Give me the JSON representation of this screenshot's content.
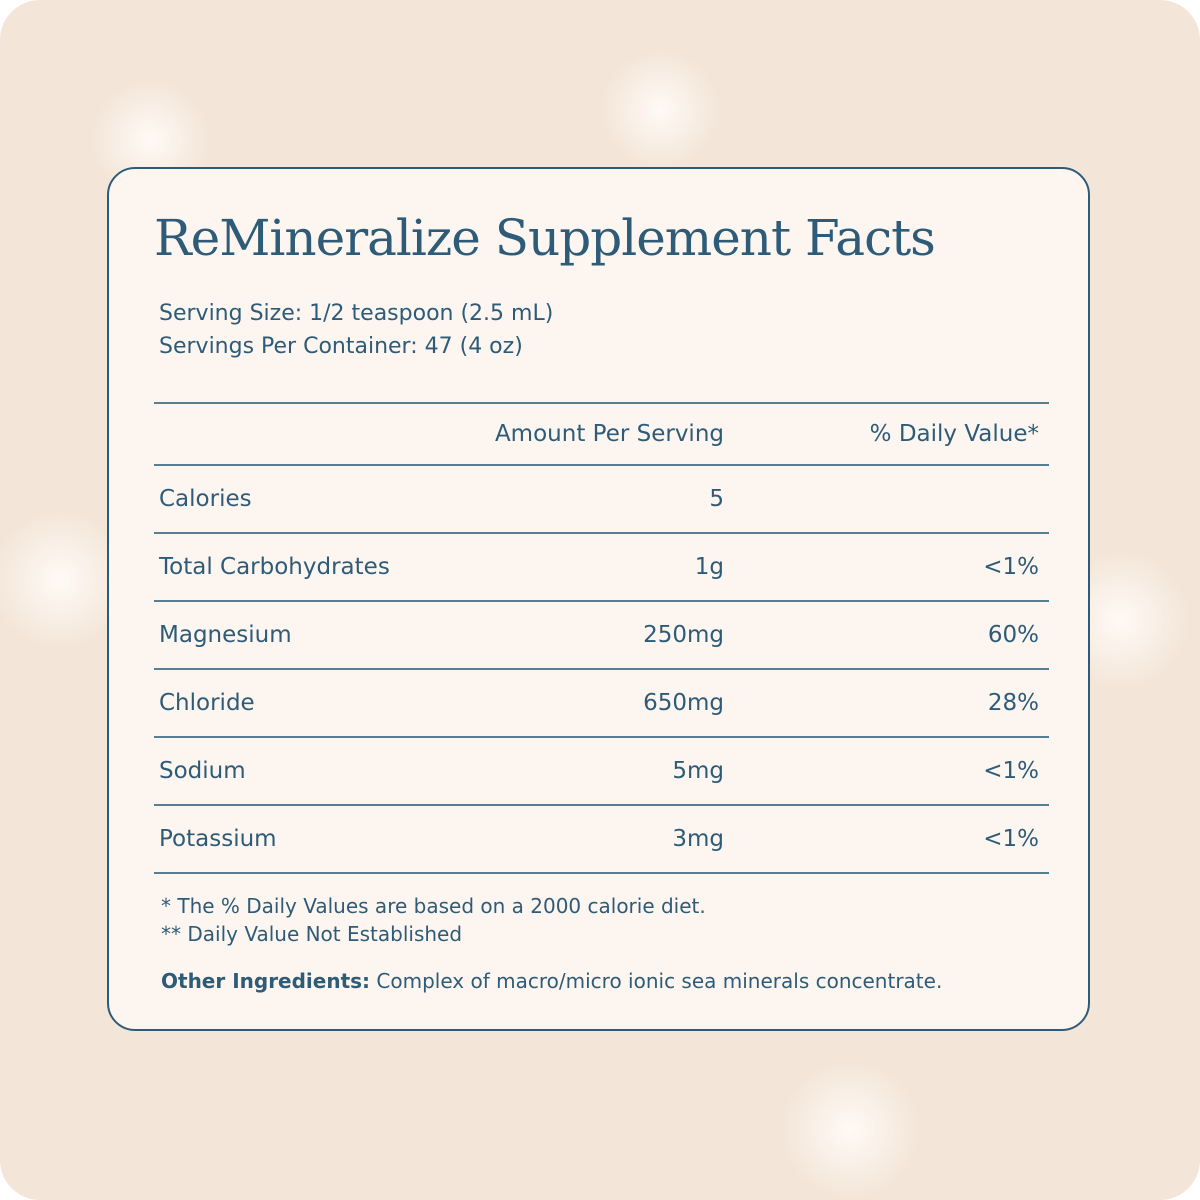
{
  "title": "ReMineralize Supplement Facts",
  "serving_size": "Serving Size: 1/2 teaspoon (2.5 mL)",
  "servings_per_container": "Servings Per Container: 47 (4 oz)",
  "table": {
    "header": [
      "Amount Per Serving",
      "% Daily Value*"
    ],
    "rows": [
      [
        "Calories",
        "5",
        null
      ],
      [
        "Total Carbohydrates",
        "1g",
        "<1%"
      ],
      [
        "Magnesium",
        "250mg",
        "60%"
      ],
      [
        "Chloride",
        "650mg",
        "28%"
      ],
      [
        "Sodium",
        "5mg",
        "<1%"
      ],
      [
        "Potassium",
        "3mg",
        "<1%"
      ]
    ]
  },
  "footnotes": [
    "* The % Daily Values are based on a 2000 calorie diet.",
    "** Daily Value Not Established"
  ],
  "other_ingredients": {
    "label": "Other Ingredients:",
    "text": "Complex of macro/micro ionic sea minerals concentrate."
  }
}
